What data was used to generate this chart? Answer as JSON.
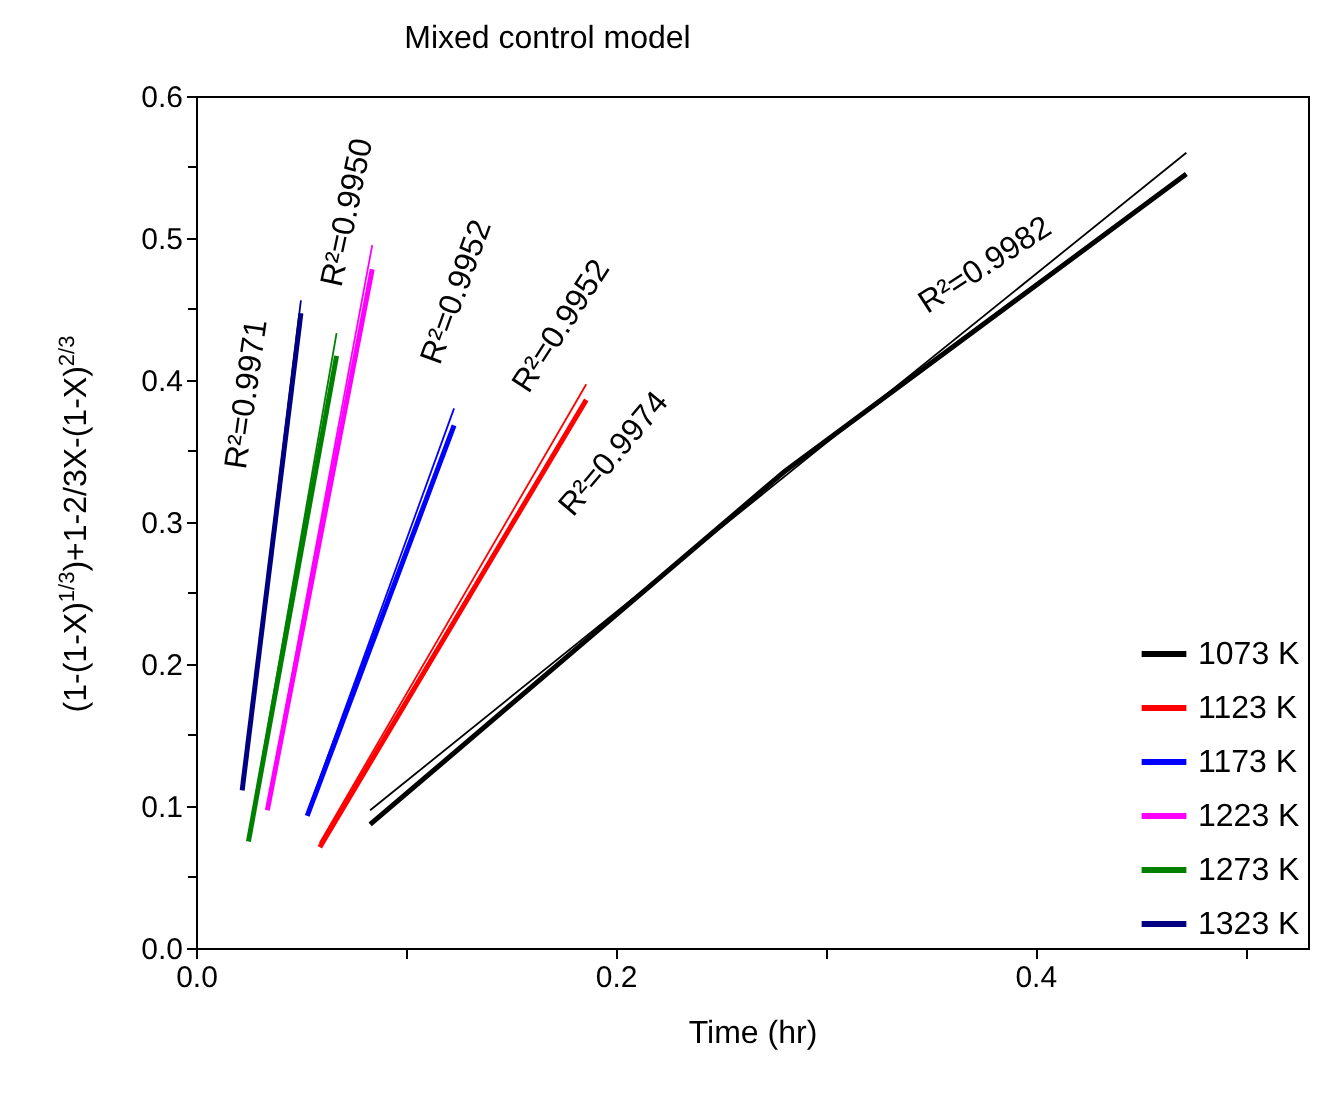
{
  "chart_data": {
    "type": "line",
    "title": "Mixed control model",
    "xlabel": "Time (hr)",
    "ylabel": "(1-(1-X)$^{1/3}$)+1-2/3X-(1-X)$^{2/3}$",
    "xlim": [
      0,
      0.53
    ],
    "ylim": [
      0,
      0.6
    ],
    "xticks": [
      {
        "value": 0,
        "label": "0.0"
      },
      {
        "value": 0.1,
        "label": null
      },
      0.2,
      {
        "value": 0.3,
        "label": null
      },
      0.4,
      {
        "value": 0.5,
        "label": null
      }
    ],
    "yticks": [
      {
        "value": 0,
        "label": "0.0"
      },
      {
        "value": 0.05,
        "label": null
      },
      0.1,
      {
        "value": 0.15,
        "label": null
      },
      0.2,
      {
        "value": 0.25,
        "label": null
      },
      0.3,
      {
        "value": 0.35,
        "label": null
      },
      0.4,
      {
        "value": 0.45,
        "label": null
      },
      0.5,
      {
        "value": 0.55,
        "label": null
      },
      0.6
    ],
    "grid": false,
    "legend": "bottom right",
    "marker": "none",
    "line_style": "solid",
    "series": [
      {
        "name": "1073 K",
        "color": "#000000",
        "x": [
          0.083,
          0.28,
          0.472
        ],
        "values": [
          0.087,
          0.335,
          0.545
        ]
      },
      {
        "name": "1123 K",
        "color": "#ff0000",
        "x": [
          0.059,
          0.186
        ],
        "values": [
          0.071,
          0.386
        ]
      },
      {
        "name": "1173 K",
        "color": "#0000ff",
        "x": [
          0.053,
          0.123
        ],
        "values": [
          0.093,
          0.368
        ]
      },
      {
        "name": "1223 K",
        "color": "#ff00ff",
        "x": [
          0.034,
          0.084
        ],
        "values": [
          0.097,
          0.478
        ]
      },
      {
        "name": "1273 K",
        "color": "#008000",
        "x": [
          0.025,
          0.067
        ],
        "values": [
          0.075,
          0.417
        ]
      },
      {
        "name": "1323 K",
        "color": "#000080",
        "x": [
          0.022,
          0.05
        ],
        "values": [
          0.111,
          0.447
        ]
      },
      {
        "color": "#000000",
        "x": [
          0.083,
          0.472
        ],
        "values": [
          0.097,
          0.56
        ]
      },
      {
        "color": "#ff0000",
        "x": [
          0.059,
          0.186
        ],
        "values": [
          0.074,
          0.397
        ]
      },
      {
        "color": "#0000ff",
        "x": [
          0.053,
          0.123
        ],
        "values": [
          0.095,
          0.38
        ]
      },
      {
        "color": "#ff00ff",
        "x": [
          0.034,
          0.084
        ],
        "values": [
          0.099,
          0.495
        ]
      },
      {
        "color": "#008000",
        "x": [
          0.025,
          0.067
        ],
        "values": [
          0.077,
          0.433
        ]
      },
      {
        "color": "#000080",
        "x": [
          0.022,
          0.05
        ],
        "values": [
          0.113,
          0.456
        ]
      }
    ],
    "annotations": [
      "R²=0.9971",
      "R²=0.9950",
      "R²=0.9952",
      "R²=0.9952",
      "R²=0.9974",
      "R²=0.9982"
    ]
  }
}
